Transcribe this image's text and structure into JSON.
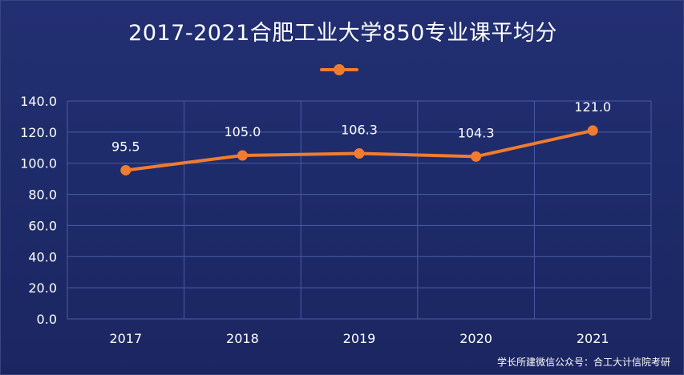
{
  "chart_data": {
    "type": "line",
    "title": "2017-2021合肥工业大学850专业课平均分",
    "categories": [
      "2017",
      "2018",
      "2019",
      "2020",
      "2021"
    ],
    "series": [
      {
        "name": "",
        "values": [
          95.5,
          105.0,
          106.3,
          104.3,
          121.0
        ]
      }
    ],
    "data_labels": [
      "95.5",
      "105.0",
      "106.3",
      "104.3",
      "121.0"
    ],
    "y_ticks": [
      "0.0",
      "20.0",
      "40.0",
      "60.0",
      "80.0",
      "100.0",
      "120.0",
      "140.0"
    ],
    "ylim": [
      0,
      140
    ],
    "xlabel": "",
    "ylabel": "",
    "grid": true,
    "legend": "top-center"
  },
  "colors": {
    "line": "#f07c2f",
    "grid": "#4a5ba6",
    "text": "#ffffff"
  },
  "watermark": "学长所建微信公众号：合工大计信院考研"
}
